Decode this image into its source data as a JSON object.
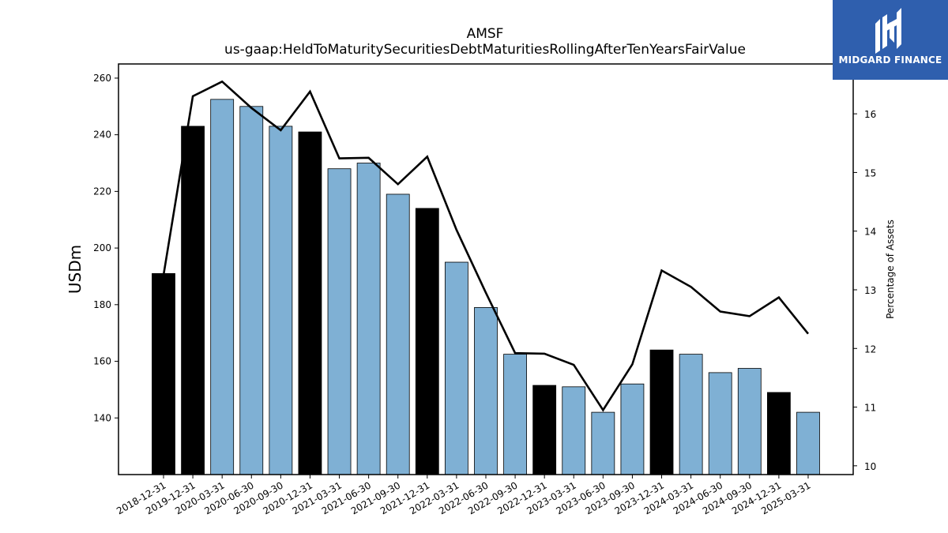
{
  "chart_data": {
    "type": "bar",
    "title": "AMSF",
    "subtitle": "us-gaap:HeldToMaturitySecuritiesDebtMaturitiesRollingAfterTenYearsFairValue",
    "ylabel": "USDm",
    "y2label": "Percentage of Assets",
    "ylim": [
      120,
      265
    ],
    "y2lim": [
      9.85,
      16.85
    ],
    "yticks": [
      140,
      160,
      180,
      200,
      220,
      240,
      260
    ],
    "y2ticks": [
      10,
      11,
      12,
      13,
      14,
      15,
      16
    ],
    "grid": false,
    "categories": [
      "2018-12-31",
      "2019-12-31",
      "2020-03-31",
      "2020-06-30",
      "2020-09-30",
      "2020-12-31",
      "2021-03-31",
      "2021-06-30",
      "2021-09-30",
      "2021-12-31",
      "2022-03-31",
      "2022-06-30",
      "2022-09-30",
      "2022-12-31",
      "2023-03-31",
      "2023-06-30",
      "2023-09-30",
      "2023-12-31",
      "2024-03-31",
      "2024-06-30",
      "2024-09-30",
      "2024-12-31",
      "2025-03-31"
    ],
    "series": [
      {
        "kind": "bar",
        "axis": "left",
        "values": [
          191,
          243,
          252.5,
          250,
          243,
          241,
          228,
          230,
          219,
          214,
          195,
          179,
          162.5,
          151.5,
          151,
          142,
          152,
          164,
          162.5,
          156,
          157.5,
          149,
          142
        ]
      },
      {
        "kind": "line",
        "axis": "right",
        "values": [
          13.25,
          16.3,
          16.55,
          16.1,
          15.72,
          16.38,
          15.24,
          15.25,
          14.8,
          15.27,
          14.02,
          12.95,
          11.92,
          11.91,
          11.72,
          10.95,
          11.73,
          13.33,
          13.05,
          12.63,
          12.55,
          12.87,
          12.25
        ]
      }
    ],
    "bar_colors": {
      "annual": "#000000",
      "quarterly": "#7fb0d4",
      "edge": "#000000"
    },
    "annual_flags": [
      true,
      true,
      false,
      false,
      false,
      true,
      false,
      false,
      false,
      true,
      false,
      false,
      false,
      true,
      false,
      false,
      false,
      true,
      false,
      false,
      false,
      true,
      false
    ],
    "line_color": "#000000"
  },
  "logo": {
    "text": "MIDGARD FINANCE",
    "background": "#2f5fae"
  }
}
